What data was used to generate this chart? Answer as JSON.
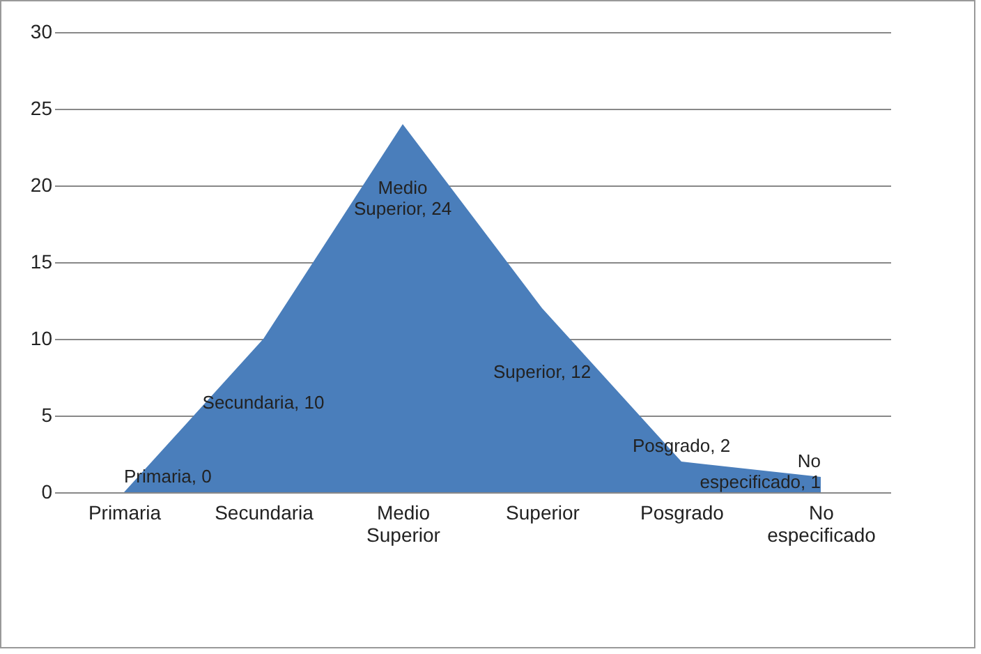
{
  "chart_data": {
    "type": "area",
    "categories": [
      "Primaria",
      "Secundaria",
      "Medio Superior",
      "Superior",
      "Posgrado",
      "No especificado"
    ],
    "values": [
      0,
      10,
      24,
      12,
      2,
      1
    ],
    "value_labels": [
      "Primaria, 0",
      "Secundaria, 10",
      "Medio Superior, 24",
      "Superior, 12",
      "Posgrado, 2",
      "No especificado, 1"
    ],
    "color": "#4a7ebb",
    "ylim": [
      0,
      30
    ],
    "yticks": [
      0,
      5,
      10,
      15,
      20,
      25,
      30
    ],
    "grid": "y"
  }
}
